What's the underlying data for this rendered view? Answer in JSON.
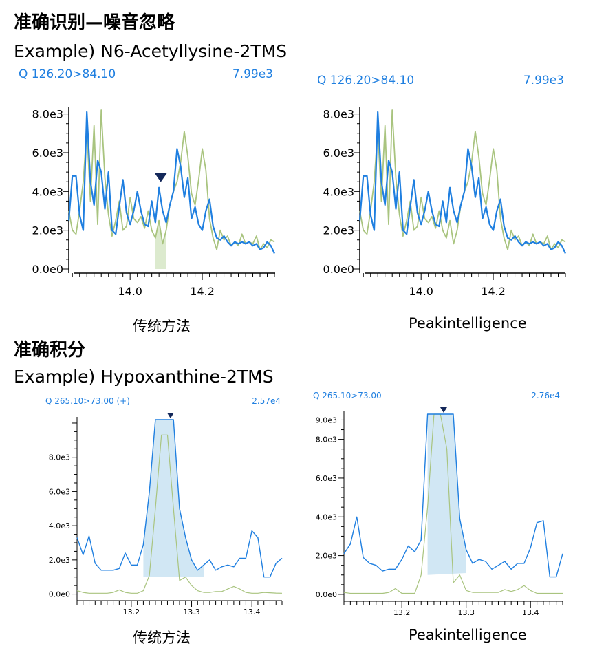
{
  "sections": [
    {
      "title": "准确识别—噪音忽略",
      "example": "Example) N6-Acetyllysine-2TMS"
    },
    {
      "title": "准确积分",
      "example": "Example) Hypoxanthine-2TMS"
    }
  ],
  "colors": {
    "blue": "#1f7fe0",
    "green": "#a9c47f",
    "marker": "#14285a",
    "fill_blue": "#c9e3f2",
    "fill_green": "#d6e6c5"
  },
  "chart_data": [
    {
      "id": "c1",
      "type": "line",
      "caption": "传统方法",
      "title": "Q 126.20>84.10",
      "max_label": "7.99e3",
      "xlim": [
        13.83,
        14.4
      ],
      "ylim": [
        0,
        8200
      ],
      "xticks": [
        14.0,
        14.2
      ],
      "yticks": [
        {
          "v": 0,
          "label": "0.0e0"
        },
        {
          "v": 2000,
          "label": "2.0e3"
        },
        {
          "v": 4000,
          "label": "4.0e3"
        },
        {
          "v": 6000,
          "label": "6.0e3"
        },
        {
          "v": 8000,
          "label": "8.0e3"
        }
      ],
      "marker_x": 14.085,
      "area": {
        "from": 14.07,
        "to": 14.1,
        "series": "green",
        "color": "green"
      },
      "series": [
        {
          "name": "quantifier",
          "color": "blue",
          "x": [
            13.83,
            13.84,
            13.85,
            13.86,
            13.87,
            13.88,
            13.89,
            13.9,
            13.91,
            13.92,
            13.93,
            13.94,
            13.95,
            13.96,
            13.97,
            13.98,
            13.99,
            14.0,
            14.01,
            14.02,
            14.03,
            14.04,
            14.05,
            14.06,
            14.07,
            14.08,
            14.09,
            14.1,
            14.11,
            14.12,
            14.13,
            14.14,
            14.15,
            14.16,
            14.17,
            14.18,
            14.19,
            14.2,
            14.21,
            14.22,
            14.23,
            14.24,
            14.25,
            14.26,
            14.27,
            14.28,
            14.29,
            14.3,
            14.31,
            14.32,
            14.33,
            14.34,
            14.35,
            14.36,
            14.37,
            14.38,
            14.39,
            14.4
          ],
          "y": [
            2500,
            4800,
            4800,
            2800,
            2000,
            8100,
            4500,
            3300,
            5600,
            5000,
            3100,
            5000,
            2000,
            1800,
            3200,
            4600,
            2900,
            2300,
            3000,
            4000,
            3000,
            2300,
            2200,
            3500,
            2400,
            4200,
            3000,
            2400,
            3300,
            4000,
            6200,
            5300,
            3700,
            4700,
            2600,
            3200,
            2300,
            2000,
            3000,
            3600,
            2200,
            1600,
            1500,
            1700,
            1400,
            1200,
            1400,
            1300,
            1400,
            1300,
            1400,
            1200,
            1300,
            1000,
            1100,
            1400,
            1200,
            800
          ]
        },
        {
          "name": "qualifier",
          "color": "green",
          "x": [
            13.83,
            13.84,
            13.85,
            13.86,
            13.87,
            13.88,
            13.89,
            13.9,
            13.91,
            13.92,
            13.93,
            13.94,
            13.95,
            13.96,
            13.97,
            13.98,
            13.99,
            14.0,
            14.01,
            14.02,
            14.03,
            14.04,
            14.05,
            14.06,
            14.07,
            14.08,
            14.09,
            14.1,
            14.11,
            14.12,
            14.13,
            14.14,
            14.15,
            14.16,
            14.17,
            14.18,
            14.19,
            14.2,
            14.21,
            14.22,
            14.23,
            14.24,
            14.25,
            14.26,
            14.27,
            14.28,
            14.29,
            14.3,
            14.31,
            14.32,
            14.33,
            14.34,
            14.35,
            14.36,
            14.37,
            14.38,
            14.39,
            14.4
          ],
          "y": [
            3000,
            2000,
            1800,
            3000,
            4500,
            7200,
            3500,
            7400,
            2300,
            8200,
            4700,
            2800,
            1700,
            2500,
            3500,
            2000,
            2200,
            3700,
            2600,
            2400,
            2700,
            2100,
            3000,
            2000,
            1600,
            2500,
            1300,
            2000,
            3300,
            4000,
            4500,
            5500,
            7100,
            5800,
            3900,
            3300,
            4600,
            6200,
            5100,
            2600,
            1600,
            1000,
            2000,
            1500,
            1700,
            1200,
            1400,
            1200,
            1800,
            1300,
            1400,
            1300,
            1700,
            1000,
            1300,
            1100,
            1500,
            1400
          ]
        }
      ]
    },
    {
      "id": "c2",
      "type": "line",
      "caption": "Peakintelligence",
      "title": "Q 126.20>84.10",
      "max_label": "7.99e3",
      "xlim": [
        13.83,
        14.4
      ],
      "ylim": [
        0,
        8200
      ],
      "xticks": [
        14.0,
        14.2
      ],
      "yticks": [
        {
          "v": 0,
          "label": "0.0e0"
        },
        {
          "v": 2000,
          "label": "2.0e3"
        },
        {
          "v": 4000,
          "label": "4.0e3"
        },
        {
          "v": 6000,
          "label": "6.0e3"
        },
        {
          "v": 8000,
          "label": "8.0e3"
        }
      ],
      "series": [
        {
          "name": "quantifier",
          "color": "blue",
          "x": [
            13.83,
            13.84,
            13.85,
            13.86,
            13.87,
            13.88,
            13.89,
            13.9,
            13.91,
            13.92,
            13.93,
            13.94,
            13.95,
            13.96,
            13.97,
            13.98,
            13.99,
            14.0,
            14.01,
            14.02,
            14.03,
            14.04,
            14.05,
            14.06,
            14.07,
            14.08,
            14.09,
            14.1,
            14.11,
            14.12,
            14.13,
            14.14,
            14.15,
            14.16,
            14.17,
            14.18,
            14.19,
            14.2,
            14.21,
            14.22,
            14.23,
            14.24,
            14.25,
            14.26,
            14.27,
            14.28,
            14.29,
            14.3,
            14.31,
            14.32,
            14.33,
            14.34,
            14.35,
            14.36,
            14.37,
            14.38,
            14.39,
            14.4
          ],
          "y": [
            2500,
            4800,
            4800,
            2800,
            2000,
            8100,
            4500,
            3300,
            5600,
            5000,
            3100,
            5000,
            2000,
            1800,
            3200,
            4600,
            2900,
            2300,
            3000,
            4000,
            3000,
            2300,
            2200,
            3500,
            2400,
            4200,
            3000,
            2400,
            3300,
            4000,
            6200,
            5300,
            3700,
            4700,
            2600,
            3200,
            2300,
            2000,
            3000,
            3600,
            2200,
            1600,
            1500,
            1700,
            1400,
            1200,
            1400,
            1300,
            1400,
            1300,
            1400,
            1200,
            1300,
            1000,
            1100,
            1400,
            1200,
            800
          ]
        },
        {
          "name": "qualifier",
          "color": "green",
          "x": [
            13.83,
            13.84,
            13.85,
            13.86,
            13.87,
            13.88,
            13.89,
            13.9,
            13.91,
            13.92,
            13.93,
            13.94,
            13.95,
            13.96,
            13.97,
            13.98,
            13.99,
            14.0,
            14.01,
            14.02,
            14.03,
            14.04,
            14.05,
            14.06,
            14.07,
            14.08,
            14.09,
            14.1,
            14.11,
            14.12,
            14.13,
            14.14,
            14.15,
            14.16,
            14.17,
            14.18,
            14.19,
            14.2,
            14.21,
            14.22,
            14.23,
            14.24,
            14.25,
            14.26,
            14.27,
            14.28,
            14.29,
            14.3,
            14.31,
            14.32,
            14.33,
            14.34,
            14.35,
            14.36,
            14.37,
            14.38,
            14.39,
            14.4
          ],
          "y": [
            3000,
            2000,
            1800,
            3000,
            4500,
            7200,
            3500,
            7400,
            2300,
            8200,
            4700,
            2800,
            1700,
            2500,
            3500,
            2000,
            2200,
            3700,
            2600,
            2400,
            2700,
            2100,
            3000,
            2000,
            1600,
            2500,
            1300,
            2000,
            3300,
            4000,
            4500,
            5500,
            7100,
            5800,
            3900,
            3300,
            4600,
            6200,
            5100,
            2600,
            1600,
            1000,
            2000,
            1500,
            1700,
            1200,
            1400,
            1200,
            1800,
            1300,
            1400,
            1300,
            1700,
            1000,
            1300,
            1100,
            1500,
            1400
          ]
        }
      ]
    },
    {
      "id": "c3",
      "type": "line",
      "caption": "传统方法",
      "title": "Q 265.10>73.00 (+)",
      "max_label": "2.57e4",
      "xlim": [
        13.11,
        13.45
      ],
      "ylim": [
        -500,
        10200
      ],
      "xticks": [
        13.2,
        13.3,
        13.4
      ],
      "yticks": [
        {
          "v": 0,
          "label": "0.0e0"
        },
        {
          "v": 2000,
          "label": "2.0e3"
        },
        {
          "v": 4000,
          "label": "4.0e3"
        },
        {
          "v": 6000,
          "label": "6.0e3"
        },
        {
          "v": 8000,
          "label": "8.0e3"
        }
      ],
      "marker_x": 13.265,
      "area": {
        "from": 13.22,
        "to": 13.32,
        "series": "blue",
        "color": "blue",
        "base_from": 1000,
        "base_to": 1000
      },
      "series": [
        {
          "name": "quantifier",
          "color": "blue",
          "x": [
            13.11,
            13.12,
            13.13,
            13.14,
            13.15,
            13.16,
            13.17,
            13.18,
            13.19,
            13.2,
            13.21,
            13.22,
            13.23,
            13.24,
            13.25,
            13.26,
            13.27,
            13.28,
            13.29,
            13.3,
            13.31,
            13.32,
            13.33,
            13.34,
            13.35,
            13.36,
            13.37,
            13.38,
            13.39,
            13.4,
            13.41,
            13.42,
            13.43,
            13.44,
            13.45
          ],
          "y": [
            3300,
            2300,
            3400,
            1800,
            1400,
            1400,
            1400,
            1500,
            2400,
            1700,
            1700,
            2900,
            6000,
            10200,
            10200,
            10200,
            10200,
            5000,
            3300,
            2000,
            1400,
            1700,
            2000,
            1400,
            1600,
            1700,
            1600,
            2100,
            2100,
            3700,
            3300,
            1000,
            1000,
            1800,
            2100
          ]
        },
        {
          "name": "qualifier",
          "color": "green",
          "x": [
            13.11,
            13.12,
            13.13,
            13.14,
            13.15,
            13.16,
            13.17,
            13.18,
            13.19,
            13.2,
            13.21,
            13.22,
            13.23,
            13.24,
            13.25,
            13.26,
            13.27,
            13.28,
            13.29,
            13.3,
            13.31,
            13.32,
            13.33,
            13.34,
            13.35,
            13.36,
            13.37,
            13.38,
            13.39,
            13.4,
            13.41,
            13.42,
            13.43,
            13.44,
            13.45
          ],
          "y": [
            200,
            100,
            50,
            50,
            50,
            50,
            100,
            250,
            100,
            50,
            50,
            200,
            1100,
            5000,
            9300,
            9300,
            5000,
            800,
            1000,
            500,
            200,
            100,
            100,
            150,
            150,
            300,
            450,
            300,
            100,
            50,
            50,
            100,
            80,
            60,
            50
          ]
        }
      ]
    },
    {
      "id": "c4",
      "type": "line",
      "caption": "Peakintelligence",
      "title": "Q 265.10>73.00",
      "max_label": "2.76e4",
      "xlim": [
        13.11,
        13.45
      ],
      "ylim": [
        -500,
        9300
      ],
      "xticks": [
        13.2,
        13.3,
        13.4
      ],
      "yticks": [
        {
          "v": 0,
          "label": "0.0e0"
        },
        {
          "v": 2000,
          "label": "2.0e3"
        },
        {
          "v": 4000,
          "label": "4.0e3"
        },
        {
          "v": 6000,
          "label": "6.0e3"
        },
        {
          "v": 8000,
          "label": "8.0e3"
        },
        {
          "v": 9000,
          "label": "9.0e3"
        }
      ],
      "marker_x": 13.265,
      "area": {
        "from": 13.24,
        "to": 13.3,
        "series": "blue",
        "color": "blue",
        "base_from": 1000,
        "base_to": 1100
      },
      "series": [
        {
          "name": "quantifier",
          "color": "blue",
          "x": [
            13.11,
            13.12,
            13.13,
            13.14,
            13.15,
            13.16,
            13.17,
            13.18,
            13.19,
            13.2,
            13.21,
            13.22,
            13.23,
            13.24,
            13.25,
            13.26,
            13.27,
            13.28,
            13.29,
            13.3,
            13.31,
            13.32,
            13.33,
            13.34,
            13.35,
            13.36,
            13.37,
            13.38,
            13.39,
            13.4,
            13.41,
            13.42,
            13.43,
            13.44,
            13.45
          ],
          "y": [
            2100,
            2600,
            4000,
            1900,
            1600,
            1500,
            1200,
            1300,
            1300,
            1800,
            2500,
            2200,
            2800,
            9300,
            9300,
            9300,
            9300,
            9300,
            3900,
            2300,
            1600,
            1800,
            1700,
            1300,
            1500,
            1700,
            1300,
            1600,
            1600,
            2400,
            3700,
            3800,
            900,
            900,
            2100
          ]
        },
        {
          "name": "qualifier",
          "color": "green",
          "x": [
            13.11,
            13.12,
            13.13,
            13.14,
            13.15,
            13.16,
            13.17,
            13.18,
            13.19,
            13.2,
            13.21,
            13.22,
            13.23,
            13.24,
            13.25,
            13.26,
            13.27,
            13.28,
            13.29,
            13.3,
            13.31,
            13.32,
            13.33,
            13.34,
            13.35,
            13.36,
            13.37,
            13.38,
            13.39,
            13.4,
            13.41,
            13.42,
            13.43,
            13.44,
            13.45
          ],
          "y": [
            100,
            50,
            50,
            50,
            50,
            50,
            50,
            100,
            300,
            50,
            50,
            50,
            1000,
            4500,
            9300,
            9300,
            7500,
            600,
            1000,
            200,
            100,
            100,
            100,
            100,
            100,
            250,
            150,
            250,
            450,
            200,
            50,
            50,
            50,
            50,
            50
          ]
        }
      ]
    }
  ]
}
